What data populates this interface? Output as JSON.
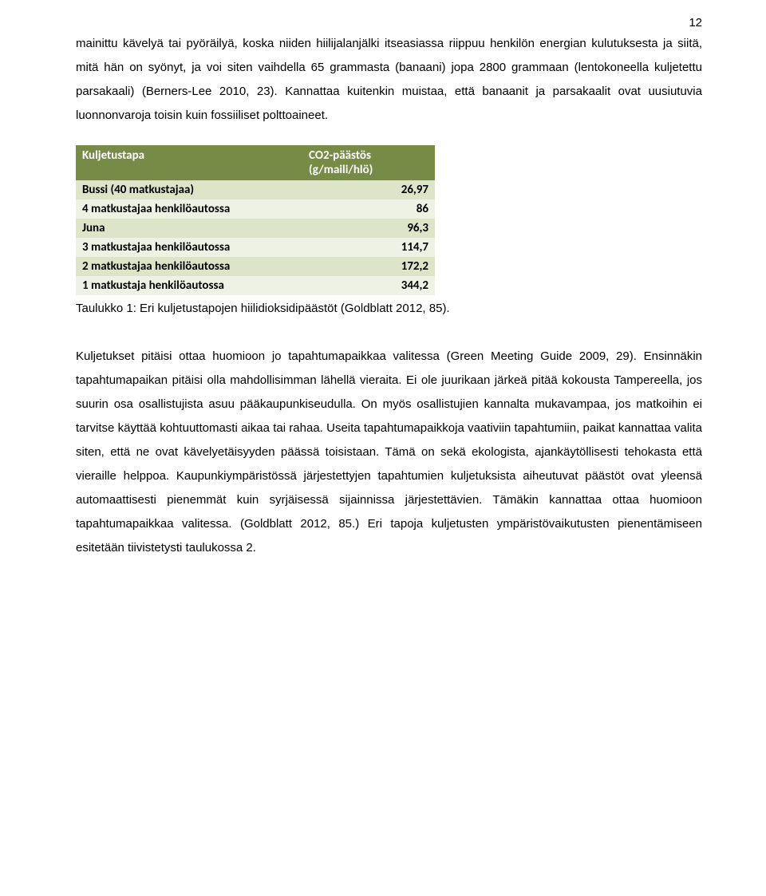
{
  "pageNumber": "12",
  "paragraph1": "mainittu kävelyä tai pyöräilyä, koska niiden hiilijalanjälki itseasiassa riippuu henkilön energian kulutuksesta ja siitä, mitä hän on syönyt, ja voi siten vaihdella 65 grammasta (banaani) jopa 2800 grammaan (lentokoneella kuljetettu parsakaali) (Berners-Lee 2010, 23). Kannattaa kuitenkin muistaa, että banaanit ja parsakaalit ovat uusiutuvia luonnonvaroja toisin kuin fossiiliset polttoaineet.",
  "table": {
    "header": {
      "col1": "Kuljetustapa",
      "col2": "CO2-päästös (g/maili/hlö)"
    },
    "rows": [
      {
        "label": "Bussi (40 matkustajaa)",
        "value": "26,97"
      },
      {
        "label": "4 matkustajaa henkilöautossa",
        "value": "86"
      },
      {
        "label": "Juna",
        "value": "96,3"
      },
      {
        "label": "3 matkustajaa henkilöautossa",
        "value": "114,7"
      },
      {
        "label": "2 matkustajaa henkilöautossa",
        "value": "172,2"
      },
      {
        "label": "1 matkustaja henkilöautossa",
        "value": "344,2"
      }
    ],
    "colors": {
      "header_bg": "#768c46",
      "header_text": "#ffffff",
      "row_odd_bg": "#dce5c8",
      "row_even_bg": "#eef2e4",
      "cell_text": "#000000"
    }
  },
  "tableCaption": "Taulukko 1: Eri kuljetustapojen hiilidioksidipäästöt (Goldblatt 2012, 85).",
  "paragraph2": "Kuljetukset pitäisi ottaa huomioon jo tapahtumapaikkaa valitessa (Green Meeting Guide 2009, 29). Ensinnäkin tapahtumapaikan pitäisi olla mahdollisimman lähellä vieraita. Ei ole juurikaan järkeä pitää kokousta Tampereella, jos suurin osa osallistujista asuu pääkaupunkiseudulla. On myös osallistujien kannalta mukavampaa, jos matkoihin ei tarvitse käyttää kohtuuttomasti aikaa tai rahaa. Useita tapahtumapaikkoja vaativiin tapahtumiin, paikat kannattaa valita siten, että ne ovat kävelyetäisyyden päässä toisistaan. Tämä on sekä ekologista, ajankäytöllisesti tehokasta että vieraille helppoa. Kaupunkiympäristössä järjestettyjen tapahtumien kuljetuksista aiheutuvat päästöt ovat yleensä automaattisesti pienemmät kuin syrjäisessä sijainnissa järjestettävien. Tämäkin kannattaa ottaa huomioon tapahtumapaikkaa valitessa. (Goldblatt 2012, 85.) Eri tapoja kuljetusten ympäristövaikutusten pienentämiseen esitetään tiivistetysti taulukossa 2."
}
